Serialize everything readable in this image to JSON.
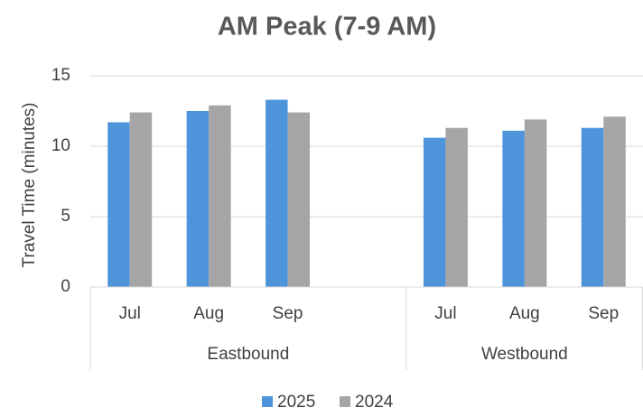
{
  "chart_data": {
    "type": "bar",
    "title": "AM Peak (7-9 AM)",
    "y_label": "Travel Time (minutes)",
    "groups": [
      {
        "label": "Eastbound",
        "categories": [
          "Jul",
          "Aug",
          "Sep",
          null
        ]
      },
      {
        "label": "Westbound",
        "categories": [
          "Jul",
          "Aug",
          "Sep"
        ]
      }
    ],
    "series": [
      {
        "name": "2025",
        "color": "#4e94db",
        "values": [
          11.7,
          12.5,
          13.3,
          null,
          10.6,
          11.1,
          11.3
        ]
      },
      {
        "name": "2024",
        "color": "#a5a5a5",
        "values": [
          12.4,
          12.9,
          12.4,
          null,
          11.3,
          11.9,
          12.1
        ]
      }
    ],
    "ylim": [
      0,
      15
    ],
    "yticks": [
      0,
      5,
      10,
      15
    ],
    "grid": true,
    "legend": "bottom"
  }
}
